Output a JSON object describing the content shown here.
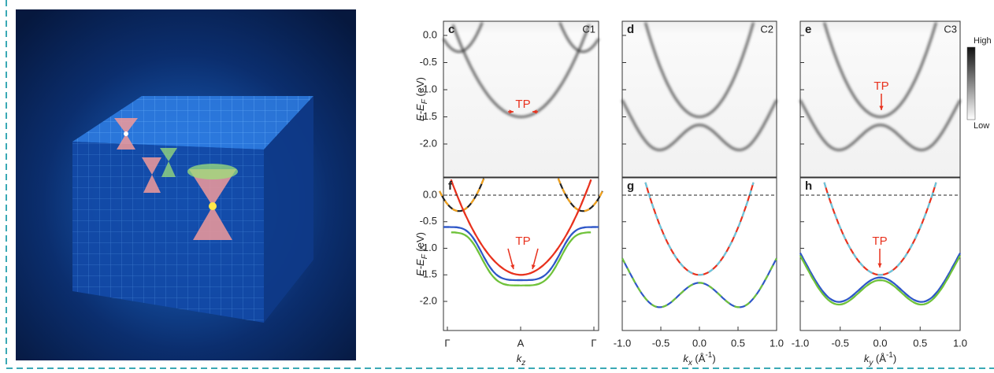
{
  "top_panels": [
    {
      "letter": "c",
      "name": "C1"
    },
    {
      "letter": "d",
      "name": "C2"
    },
    {
      "letter": "e",
      "name": "C3"
    }
  ],
  "bottom_panels": [
    {
      "letter": "f"
    },
    {
      "letter": "g"
    },
    {
      "letter": "h"
    }
  ],
  "top_yticks": [
    "0.0",
    "-0.5",
    "-1.0",
    "-1.5",
    "-2.0"
  ],
  "bottom_yticks": [
    "0.0",
    "-0.5",
    "-1.0",
    "-1.5",
    "-2.0"
  ],
  "y_label": {
    "main": "E-E",
    "sub": "F",
    "unit": " (eV)"
  },
  "kz_ticks": [
    "Γ",
    "A",
    "Γ"
  ],
  "kx_ticks": [
    "-1.0",
    "-0.5",
    "0.0",
    "0.5",
    "1.0"
  ],
  "ky_ticks": [
    "-1.0",
    "-0.5",
    "0.0",
    "0.5",
    "1.0"
  ],
  "x_labels": [
    {
      "main": "k",
      "sub": "z"
    },
    {
      "main": "k",
      "sub": "x",
      "unit": " (Å",
      "exp": "-1",
      "close": ")"
    },
    {
      "main": "k",
      "sub": "y",
      "unit": " (Å",
      "exp": "-1",
      "close": ")"
    }
  ],
  "annotations": [
    "TP",
    "TP",
    "TP",
    "TP"
  ],
  "colorbar": {
    "high": "High",
    "low": "Low"
  }
}
